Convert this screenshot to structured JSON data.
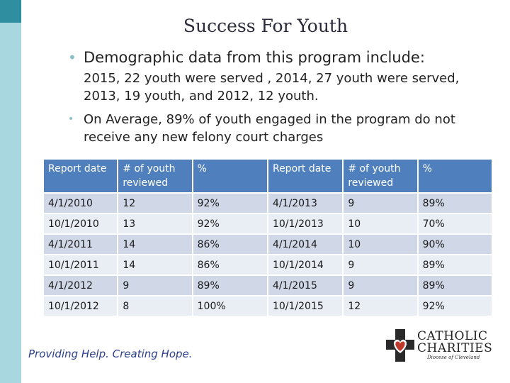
{
  "slide": {
    "title": "Success For Youth",
    "bullet1": {
      "lead": "Demographic data from this program include:",
      "detail": "2015, 22 youth were served , 2014, 27 youth were served, 2013, 19 youth, and 2012, 12 youth."
    },
    "bullet2": "On Average, 89% of youth engaged in the program do not receive any new felony court charges"
  },
  "table": {
    "headers": [
      "Report date",
      "# of youth reviewed",
      "%",
      "Report date",
      "# of youth reviewed",
      "%"
    ],
    "rows": [
      [
        "4/1/2010",
        "12",
        "92%",
        "4/1/2013",
        "9",
        "89%"
      ],
      [
        "10/1/2010",
        "13",
        "92%",
        "10/1/2013",
        "10",
        "70%"
      ],
      [
        "4/1/2011",
        "14",
        "86%",
        "4/1/2014",
        "10",
        "90%"
      ],
      [
        "10/1/2011",
        "14",
        "86%",
        "10/1/2014",
        "9",
        "89%"
      ],
      [
        "4/1/2012",
        "9",
        "89%",
        "4/1/2015",
        "9",
        "89%"
      ],
      [
        "10/1/2012",
        "8",
        "100%",
        "10/1/2015",
        "12",
        "92%"
      ]
    ]
  },
  "footer": {
    "tagline": "Providing Help. Creating Hope.",
    "logo": {
      "line1": "CATHOLIC",
      "line2": "CHARITIES",
      "line3": "Diocese of Cleveland",
      "icon": "cross-heart-icon"
    }
  },
  "colors": {
    "accent_bar": "#a9d7df",
    "accent_dark": "#2f8ea0",
    "header_fill": "#4f80bd",
    "row_odd": "#d0d8e8",
    "row_even": "#e9edf4",
    "tagline": "#2b3f8a"
  }
}
